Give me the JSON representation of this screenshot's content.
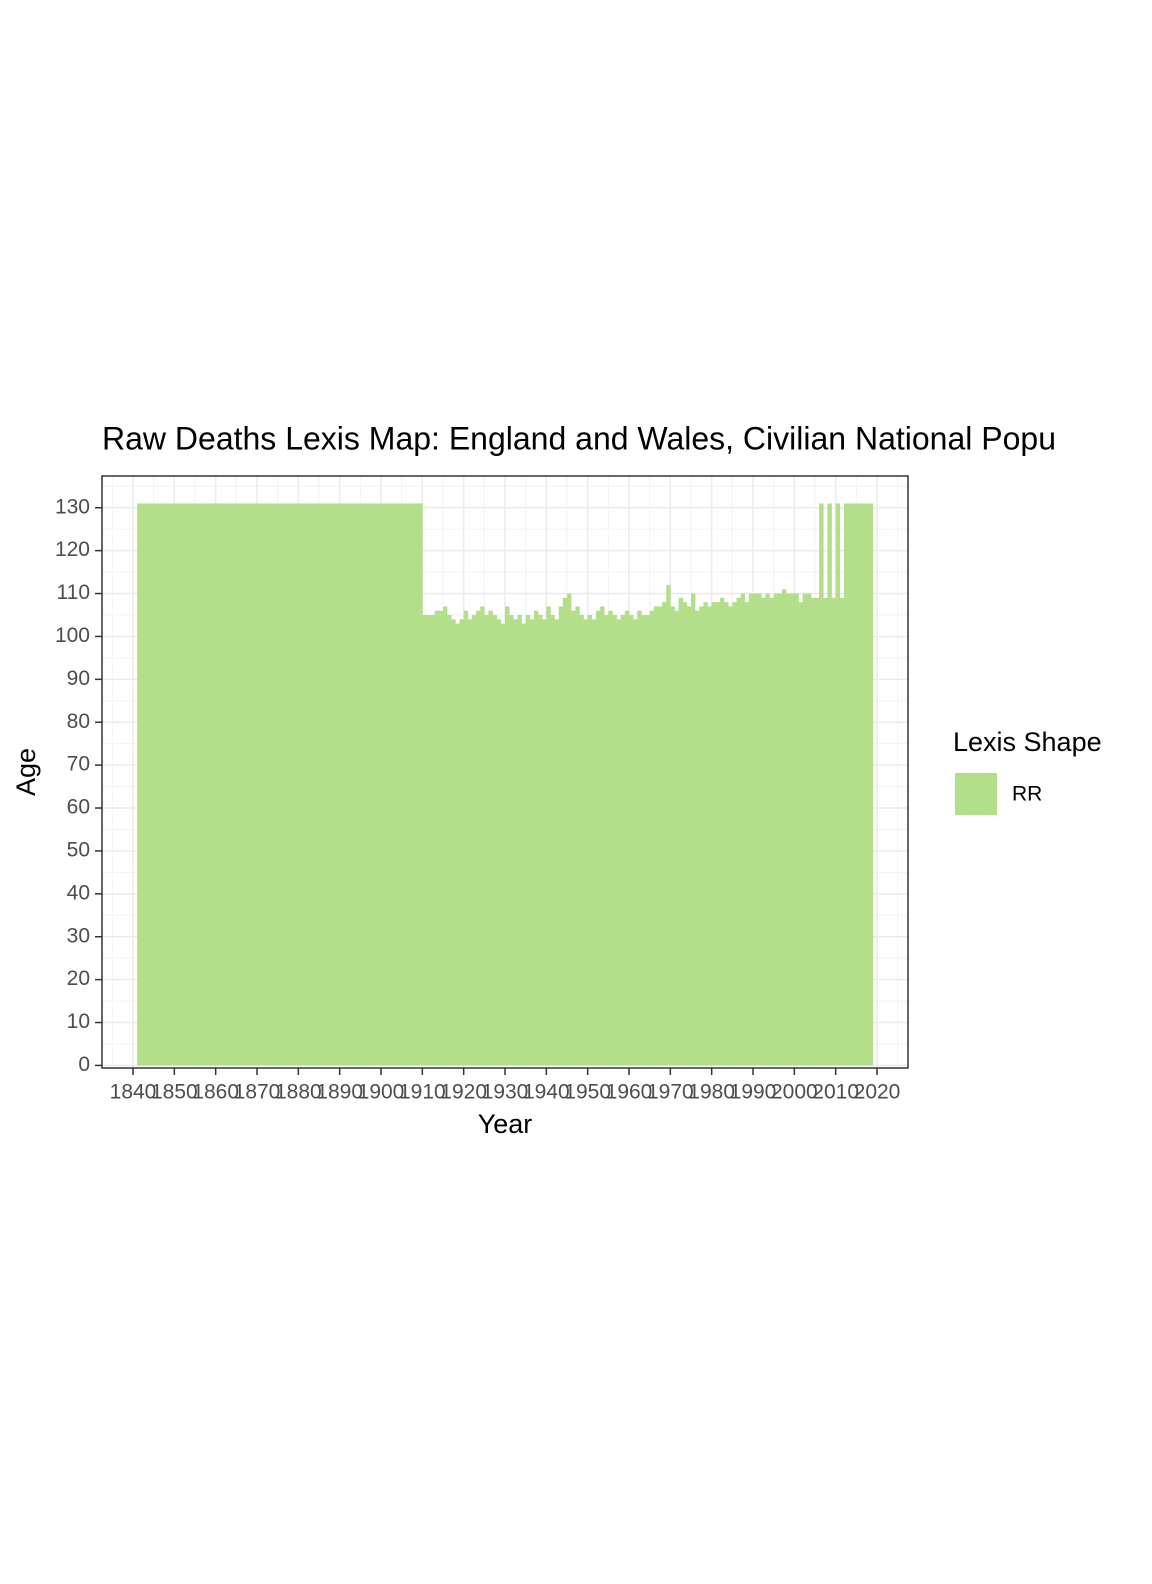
{
  "chart_data": {
    "type": "lexis",
    "title": "Raw Deaths Lexis Map: England and Wales, Civilian National Popu",
    "xlabel": "Year",
    "ylabel": "Age",
    "legend_title": "Lexis Shape",
    "series": [
      {
        "name": "RR",
        "color": "#b3df8a",
        "x": [
          1841,
          1842,
          1843,
          1844,
          1845,
          1846,
          1847,
          1848,
          1849,
          1850,
          1851,
          1852,
          1853,
          1854,
          1855,
          1856,
          1857,
          1858,
          1859,
          1860,
          1861,
          1862,
          1863,
          1864,
          1865,
          1866,
          1867,
          1868,
          1869,
          1870,
          1871,
          1872,
          1873,
          1874,
          1875,
          1876,
          1877,
          1878,
          1879,
          1880,
          1881,
          1882,
          1883,
          1884,
          1885,
          1886,
          1887,
          1888,
          1889,
          1890,
          1891,
          1892,
          1893,
          1894,
          1895,
          1896,
          1897,
          1898,
          1899,
          1900,
          1901,
          1902,
          1903,
          1904,
          1905,
          1906,
          1907,
          1908,
          1909,
          1910,
          1911,
          1912,
          1913,
          1914,
          1915,
          1916,
          1917,
          1918,
          1919,
          1920,
          1921,
          1922,
          1923,
          1924,
          1925,
          1926,
          1927,
          1928,
          1929,
          1930,
          1931,
          1932,
          1933,
          1934,
          1935,
          1936,
          1937,
          1938,
          1939,
          1940,
          1941,
          1942,
          1943,
          1944,
          1945,
          1946,
          1947,
          1948,
          1949,
          1950,
          1951,
          1952,
          1953,
          1954,
          1955,
          1956,
          1957,
          1958,
          1959,
          1960,
          1961,
          1962,
          1963,
          1964,
          1965,
          1966,
          1967,
          1968,
          1969,
          1970,
          1971,
          1972,
          1973,
          1974,
          1975,
          1976,
          1977,
          1978,
          1979,
          1980,
          1981,
          1982,
          1983,
          1984,
          1985,
          1986,
          1987,
          1988,
          1989,
          1990,
          1991,
          1992,
          1993,
          1994,
          1995,
          1996,
          1997,
          1998,
          1999,
          2000,
          2001,
          2002,
          2003,
          2004,
          2005,
          2006,
          2007,
          2008,
          2009,
          2010,
          2011,
          2012,
          2013,
          2014,
          2015,
          2016,
          2017,
          2018
        ],
        "values": [
          131,
          131,
          131,
          131,
          131,
          131,
          131,
          131,
          131,
          131,
          131,
          131,
          131,
          131,
          131,
          131,
          131,
          131,
          131,
          131,
          131,
          131,
          131,
          131,
          131,
          131,
          131,
          131,
          131,
          131,
          131,
          131,
          131,
          131,
          131,
          131,
          131,
          131,
          131,
          131,
          131,
          131,
          131,
          131,
          131,
          131,
          131,
          131,
          131,
          131,
          131,
          131,
          131,
          131,
          131,
          131,
          131,
          131,
          131,
          131,
          131,
          131,
          131,
          131,
          131,
          131,
          131,
          131,
          131,
          105,
          105,
          105,
          106,
          106,
          107,
          105,
          104,
          103,
          104,
          106,
          104,
          105,
          106,
          107,
          105,
          106,
          105,
          104,
          103,
          107,
          105,
          104,
          105,
          103,
          105,
          104,
          106,
          105,
          104,
          107,
          105,
          104,
          107,
          109,
          110,
          106,
          107,
          105,
          104,
          105,
          104,
          106,
          107,
          105,
          106,
          105,
          104,
          105,
          106,
          105,
          104,
          106,
          105,
          105,
          106,
          107,
          107,
          108,
          112,
          107,
          106,
          109,
          108,
          107,
          110,
          106,
          107,
          108,
          107,
          108,
          108,
          109,
          108,
          107,
          108,
          109,
          110,
          108,
          110,
          110,
          110,
          109,
          110,
          109,
          110,
          110,
          111,
          110,
          110,
          110,
          108,
          110,
          110,
          109,
          109,
          131,
          109,
          131,
          109,
          131,
          109,
          131,
          131,
          131,
          131,
          131,
          131,
          131
        ]
      }
    ],
    "xlim": [
      1832.5,
      2027.5
    ],
    "xticks": [
      1840,
      1850,
      1860,
      1870,
      1880,
      1890,
      1900,
      1910,
      1920,
      1930,
      1940,
      1950,
      1960,
      1970,
      1980,
      1990,
      2000,
      2010,
      2020
    ],
    "ylim": [
      -0.6,
      137.4
    ],
    "yticks": [
      0,
      10,
      20,
      30,
      40,
      50,
      60,
      70,
      80,
      90,
      100,
      110,
      120,
      130
    ],
    "grid": true
  }
}
